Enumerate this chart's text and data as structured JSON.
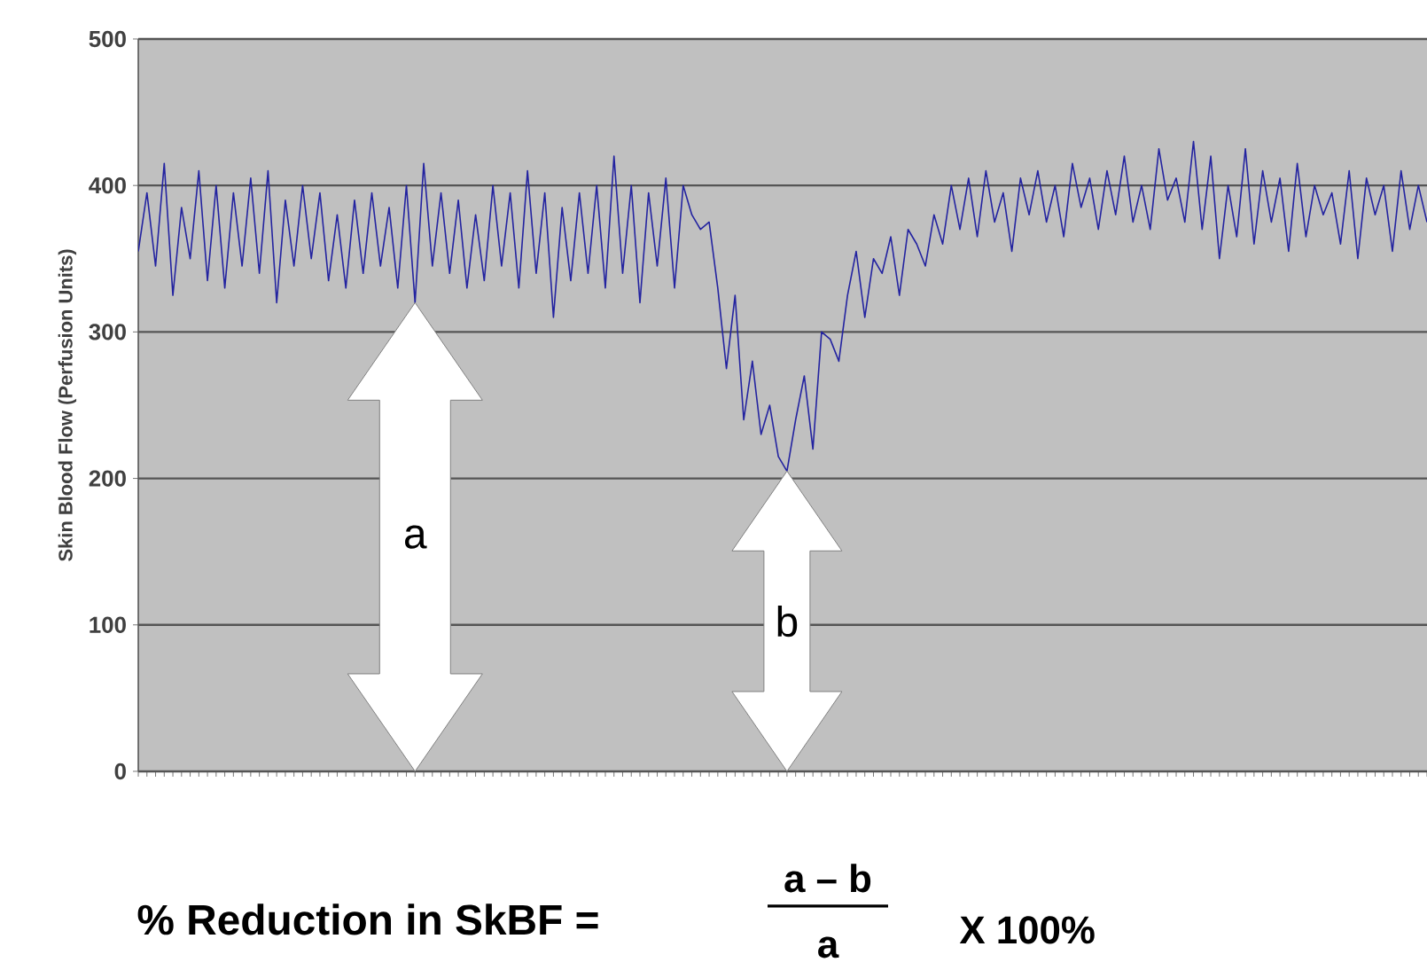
{
  "chart_data": {
    "type": "line",
    "ylabel": "Skin Blood Flow (Perfusion Units)",
    "ylim": [
      0,
      500
    ],
    "yticks": [
      0,
      100,
      200,
      300,
      400,
      500
    ],
    "grid": "y",
    "categories": [
      null,
      null,
      null,
      null,
      null,
      null,
      null,
      null,
      null,
      null,
      null,
      null,
      null,
      null,
      null,
      null,
      null,
      null,
      null,
      null,
      null,
      null,
      null,
      null,
      null,
      null,
      null,
      null,
      null,
      null,
      null,
      null,
      null,
      null,
      null,
      null,
      null,
      null,
      null,
      null,
      null,
      null,
      null,
      null,
      null,
      null,
      null,
      null,
      null,
      null,
      null,
      null,
      null,
      null,
      null,
      null,
      null,
      null,
      null,
      null,
      null,
      null,
      null,
      null,
      null,
      null,
      null,
      null,
      null,
      null,
      null,
      null,
      null,
      null,
      null,
      null,
      null,
      null,
      null,
      null,
      null,
      null,
      null,
      null,
      null,
      null,
      null,
      null,
      null,
      null,
      null,
      null,
      null,
      null,
      null,
      null,
      null,
      null,
      null,
      null,
      null,
      null,
      null,
      null,
      null,
      null,
      null,
      null,
      null,
      null,
      null,
      null,
      null,
      null,
      null,
      null,
      null,
      null,
      null,
      null,
      null,
      null,
      null,
      null,
      null,
      null,
      null,
      null,
      null,
      null,
      null,
      null,
      null,
      null,
      null,
      null,
      null,
      null,
      null,
      null,
      null,
      null,
      null,
      null,
      null,
      null,
      null,
      null,
      null,
      null
    ],
    "series": [
      {
        "color": "#2323a0",
        "values": [
          355,
          395,
          345,
          415,
          325,
          385,
          350,
          410,
          335,
          400,
          330,
          395,
          345,
          405,
          340,
          410,
          320,
          390,
          345,
          400,
          350,
          395,
          335,
          380,
          330,
          390,
          340,
          395,
          345,
          385,
          330,
          400,
          320,
          415,
          345,
          395,
          340,
          390,
          330,
          380,
          335,
          400,
          345,
          395,
          330,
          410,
          340,
          395,
          310,
          385,
          335,
          395,
          340,
          400,
          330,
          420,
          340,
          400,
          320,
          395,
          345,
          405,
          330,
          400,
          380,
          370,
          375,
          330,
          275,
          325,
          240,
          280,
          230,
          250,
          215,
          205,
          240,
          270,
          220,
          300,
          295,
          280,
          325,
          355,
          310,
          350,
          340,
          365,
          325,
          370,
          360,
          345,
          380,
          360,
          400,
          370,
          405,
          365,
          410,
          375,
          395,
          355,
          405,
          380,
          410,
          375,
          400,
          365,
          415,
          385,
          405,
          370,
          410,
          380,
          420,
          375,
          400,
          370,
          425,
          390,
          405,
          375,
          430,
          370,
          420,
          350,
          400,
          365,
          425,
          360,
          410,
          375,
          405,
          355,
          415,
          365,
          400,
          380,
          395,
          360,
          410,
          350,
          405,
          380,
          400,
          355,
          410,
          370,
          400,
          375
        ]
      }
    ],
    "annotations": [
      "a",
      "b",
      "% Reduction in SkBF =",
      "a – b",
      "a",
      "X 100%"
    ]
  }
}
